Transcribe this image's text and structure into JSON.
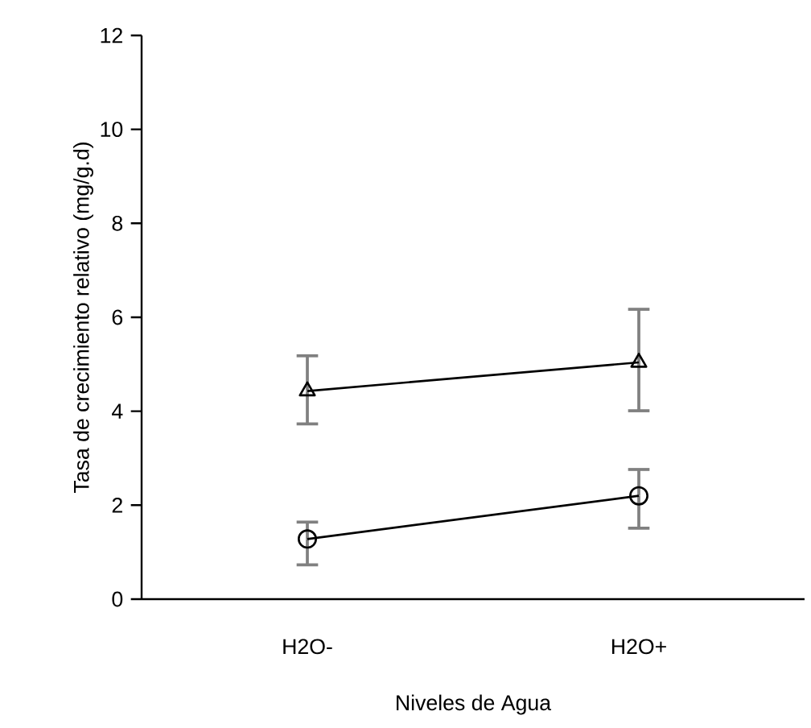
{
  "chart_data": {
    "type": "line",
    "xlabel": "Niveles de Agua",
    "ylabel": "Tasa de crecimiento relativo (mg/g.d)",
    "categories": [
      "H2O-",
      "H2O+"
    ],
    "ylim": [
      0,
      12
    ],
    "yticks": [
      0,
      2,
      4,
      6,
      8,
      10,
      12
    ],
    "line_style": "solid",
    "series": [
      {
        "color": "#000000",
        "marker": "circle",
        "values": [
          1.28,
          2.2
        ],
        "errors": [
          [
            0.73,
            1.64
          ],
          [
            1.51,
            2.76
          ]
        ]
      },
      {
        "color": "#000000",
        "marker": "triangle",
        "values": [
          4.43,
          5.04
        ],
        "errors": [
          [
            3.73,
            5.18
          ],
          [
            4.01,
            6.17
          ]
        ]
      }
    ]
  }
}
